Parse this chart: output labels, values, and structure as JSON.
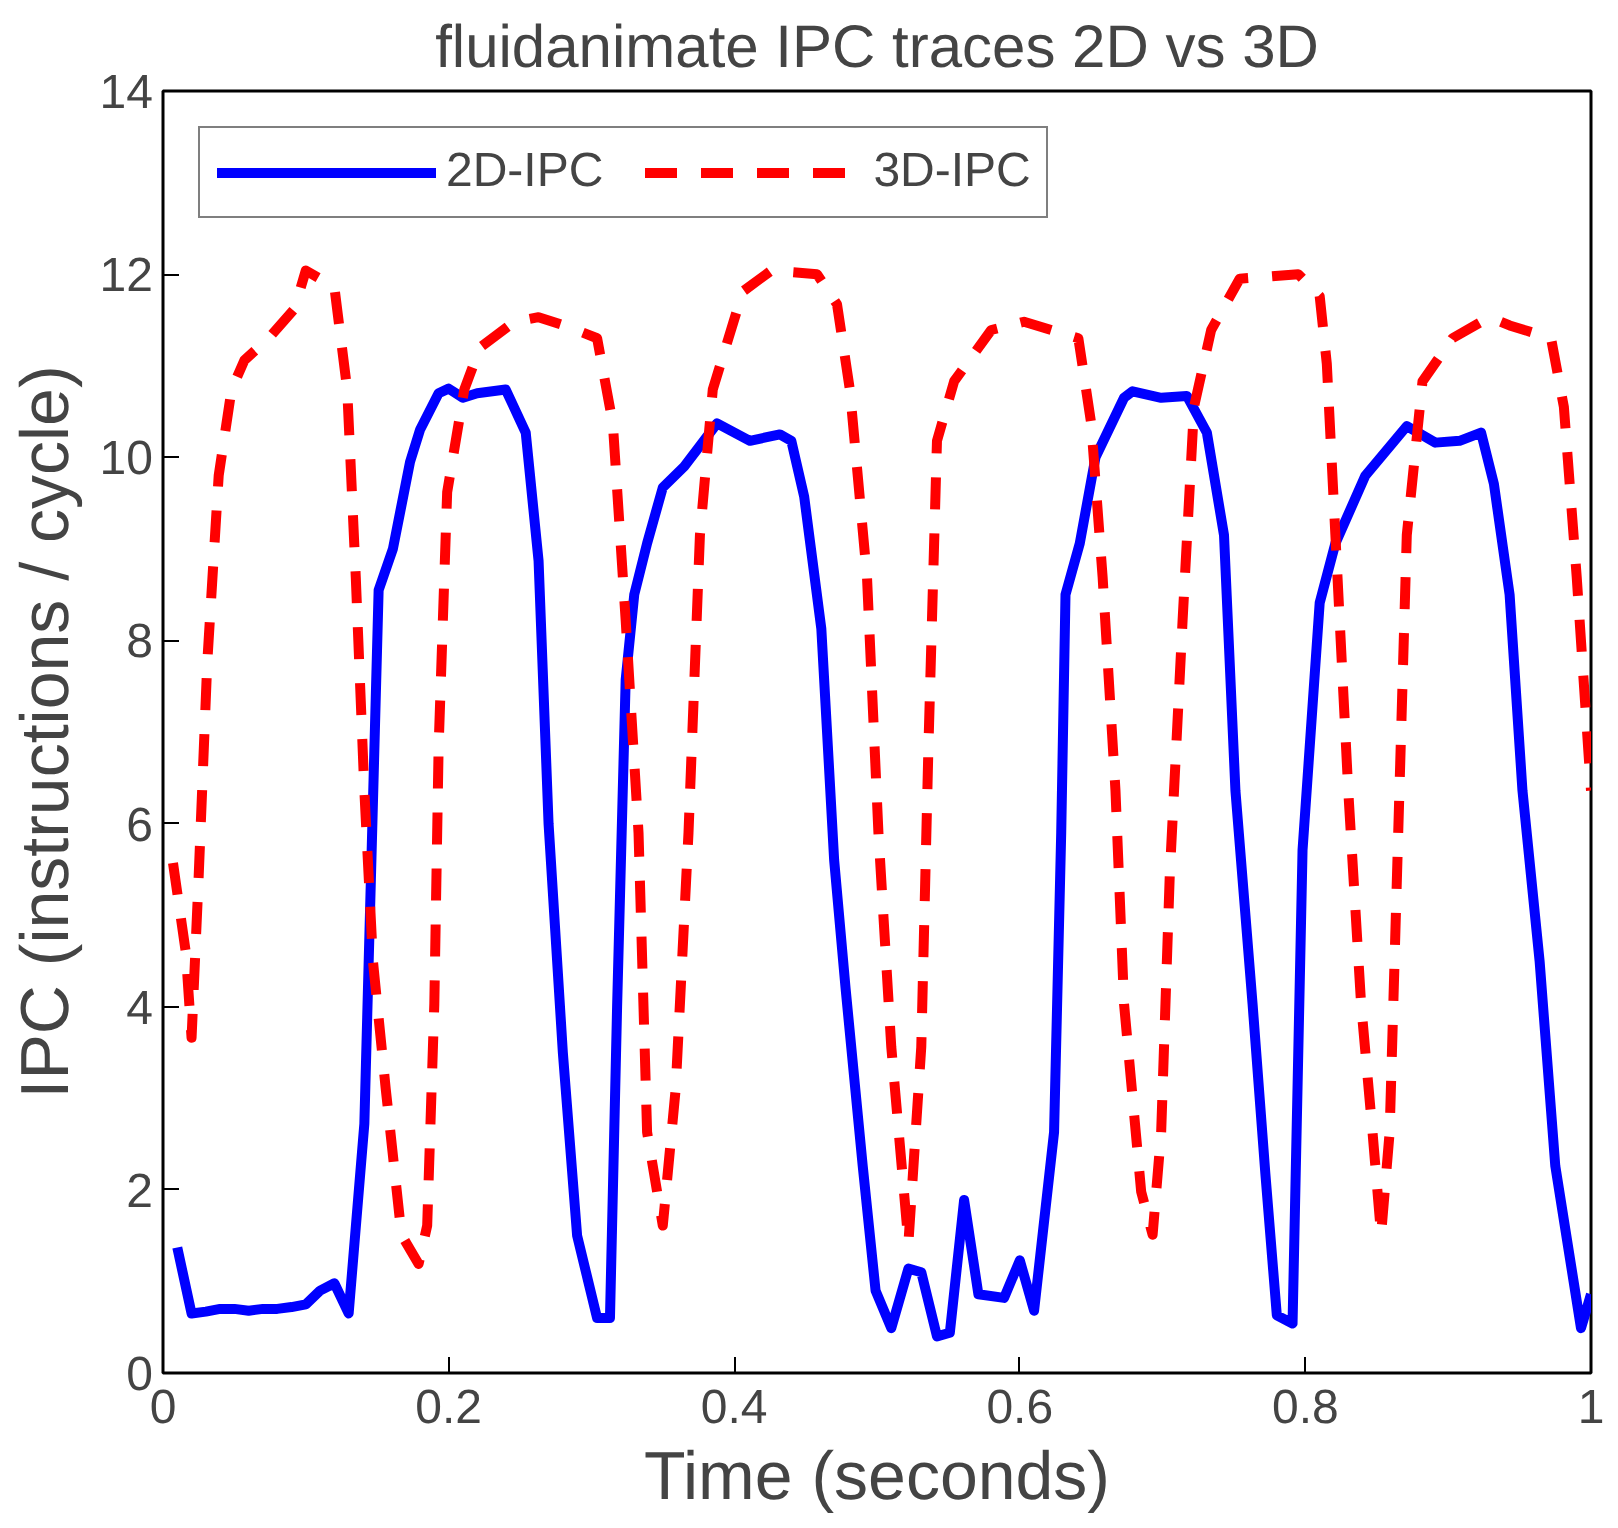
{
  "chart_data": {
    "type": "line",
    "title": "fluidanimate IPC traces 2D vs 3D",
    "xlabel": "Time (seconds)",
    "ylabel": "IPC (instructions / cycle)",
    "xlim": [
      0,
      1
    ],
    "ylim": [
      0,
      14
    ],
    "xticks": [
      0,
      0.2,
      0.4,
      0.6,
      0.8,
      1
    ],
    "yticks": [
      0,
      2,
      4,
      6,
      8,
      10,
      12,
      14
    ],
    "grid": false,
    "legend": "top left",
    "series": [
      {
        "name": "2D-IPC",
        "color": "#0000ff",
        "line_style": "solid",
        "x": [
          0.01,
          0.02,
          0.03,
          0.04,
          0.05,
          0.06,
          0.07,
          0.08,
          0.09,
          0.1,
          0.11,
          0.12,
          0.13,
          0.141,
          0.151,
          0.161,
          0.173,
          0.18,
          0.193,
          0.2,
          0.21,
          0.22,
          0.24,
          0.254,
          0.263,
          0.27,
          0.28,
          0.29,
          0.304,
          0.313,
          0.318,
          0.324,
          0.33,
          0.339,
          0.35,
          0.365,
          0.388,
          0.411,
          0.432,
          0.44,
          0.449,
          0.461,
          0.47,
          0.478,
          0.49,
          0.499,
          0.51,
          0.522,
          0.531,
          0.542,
          0.551,
          0.561,
          0.571,
          0.589,
          0.6,
          0.61,
          0.624,
          0.629,
          0.632,
          0.642,
          0.653,
          0.673,
          0.679,
          0.699,
          0.717,
          0.731,
          0.743,
          0.751,
          0.763,
          0.772,
          0.78,
          0.791,
          0.798,
          0.81,
          0.821,
          0.842,
          0.871,
          0.891,
          0.908,
          0.923,
          0.932,
          0.943,
          0.952,
          0.964,
          0.975,
          0.993,
          1.0
        ],
        "values": [
          1.37,
          0.65,
          0.67,
          0.7,
          0.7,
          0.68,
          0.7,
          0.7,
          0.72,
          0.75,
          0.9,
          0.98,
          0.65,
          2.72,
          8.55,
          9.0,
          9.95,
          10.3,
          10.7,
          10.75,
          10.65,
          10.7,
          10.74,
          10.27,
          8.87,
          6.0,
          3.5,
          1.5,
          0.6,
          0.6,
          4.0,
          7.57,
          8.5,
          9.06,
          9.67,
          9.9,
          10.37,
          10.18,
          10.25,
          10.18,
          9.57,
          8.13,
          5.6,
          4.2,
          2.26,
          0.9,
          0.49,
          1.14,
          1.1,
          0.4,
          0.44,
          1.89,
          0.86,
          0.82,
          1.23,
          0.68,
          2.63,
          5.9,
          8.5,
          9.06,
          10.0,
          10.65,
          10.72,
          10.65,
          10.67,
          10.27,
          9.15,
          6.36,
          4.03,
          2.17,
          0.63,
          0.54,
          5.71,
          8.41,
          9.06,
          9.8,
          10.34,
          10.16,
          10.18,
          10.27,
          9.71,
          8.5,
          6.36,
          4.5,
          2.26,
          0.49,
          0.86
        ]
      },
      {
        "name": "3D-IPC",
        "color": "#ff0000",
        "line_style": "dashed",
        "x": [
          0.007,
          0.016,
          0.02,
          0.025,
          0.031,
          0.039,
          0.048,
          0.057,
          0.074,
          0.092,
          0.1,
          0.12,
          0.129,
          0.135,
          0.141,
          0.147,
          0.156,
          0.167,
          0.179,
          0.185,
          0.19,
          0.193,
          0.199,
          0.211,
          0.222,
          0.246,
          0.263,
          0.281,
          0.304,
          0.315,
          0.324,
          0.333,
          0.339,
          0.35,
          0.359,
          0.368,
          0.376,
          0.385,
          0.406,
          0.426,
          0.458,
          0.472,
          0.481,
          0.493,
          0.501,
          0.51,
          0.522,
          0.531,
          0.536,
          0.542,
          0.554,
          0.58,
          0.603,
          0.641,
          0.65,
          0.658,
          0.667,
          0.673,
          0.685,
          0.693,
          0.699,
          0.705,
          0.714,
          0.722,
          0.734,
          0.754,
          0.795,
          0.81,
          0.815,
          0.821,
          0.83,
          0.839,
          0.847,
          0.853,
          0.859,
          0.865,
          0.871,
          0.882,
          0.903,
          0.929,
          0.943,
          0.972,
          0.981,
          0.99,
          1.0
        ],
        "values": [
          5.57,
          4.59,
          3.66,
          5.43,
          7.76,
          9.8,
          10.74,
          11.06,
          11.3,
          11.62,
          12.04,
          11.86,
          10.74,
          8.69,
          6.36,
          4.5,
          3.1,
          1.51,
          1.19,
          1.61,
          4.03,
          6.83,
          9.62,
          10.74,
          11.2,
          11.48,
          11.53,
          11.44,
          11.3,
          10.37,
          8.22,
          5.9,
          2.63,
          1.61,
          3.1,
          5.9,
          9.15,
          10.74,
          11.81,
          12.04,
          12.0,
          11.67,
          10.74,
          8.69,
          5.9,
          3.56,
          1.42,
          3.56,
          6.83,
          10.18,
          10.83,
          11.39,
          11.48,
          11.3,
          10.37,
          8.69,
          6.36,
          4.03,
          1.98,
          1.51,
          2.63,
          5.43,
          8.22,
          10.55,
          11.39,
          11.95,
          12.0,
          11.76,
          11.02,
          9.15,
          6.36,
          4.03,
          2.63,
          1.51,
          2.63,
          5.9,
          9.15,
          10.83,
          11.3,
          11.53,
          11.44,
          11.3,
          10.55,
          8.69,
          6.36
        ]
      }
    ]
  }
}
